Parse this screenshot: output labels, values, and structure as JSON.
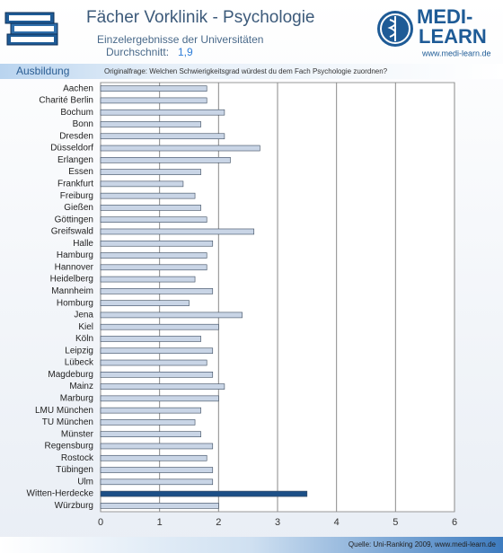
{
  "header": {
    "subtitle": "Einzelergebnisse der Universitäten",
    "average_label": "Durchschnitt:",
    "average": "1,9",
    "section": "Ausbildung",
    "question": "Originalfrage: Welchen Schwierigkeitsgrad würdest du dem Fach Psychologie zuordnen?",
    "logo_top": "MEDI-",
    "logo_bottom": "LEARN",
    "logo_url": "www.medi-learn.de"
  },
  "footer": {
    "source": "Quelle: Uni-Ranking 2009, www.medi-learn.de"
  },
  "chart_data": {
    "type": "hbar",
    "title": "Fächer Vorklinik - Psychologie",
    "categories": [
      "Aachen",
      "Charité Berlin",
      "Bochum",
      "Bonn",
      "Dresden",
      "Düsseldorf",
      "Erlangen",
      "Essen",
      "Frankfurt",
      "Freiburg",
      "Gießen",
      "Göttingen",
      "Greifswald",
      "Halle",
      "Hamburg",
      "Hannover",
      "Heidelberg",
      "Mannheim",
      "Homburg",
      "Jena",
      "Kiel",
      "Köln",
      "Leipzig",
      "Lübeck",
      "Magdeburg",
      "Mainz",
      "Marburg",
      "LMU München",
      "TU München",
      "Münster",
      "Regensburg",
      "Rostock",
      "Tübingen",
      "Ulm",
      "Witten-Herdecke",
      "Würzburg"
    ],
    "values": [
      1.8,
      1.8,
      2.1,
      1.7,
      2.1,
      2.7,
      2.2,
      1.7,
      1.4,
      1.6,
      1.7,
      1.8,
      2.6,
      1.9,
      1.8,
      1.8,
      1.6,
      1.9,
      1.5,
      2.4,
      2.0,
      1.7,
      1.9,
      1.8,
      1.9,
      2.1,
      2.0,
      1.7,
      1.6,
      1.7,
      1.9,
      1.8,
      1.9,
      1.9,
      3.5,
      2.0
    ],
    "colors": [
      "#c9d5e6",
      "#c9d5e6",
      "#c9d5e6",
      "#c9d5e6",
      "#c9d5e6",
      "#c9d5e6",
      "#c9d5e6",
      "#c9d5e6",
      "#c9d5e6",
      "#c9d5e6",
      "#c9d5e6",
      "#c9d5e6",
      "#c9d5e6",
      "#c9d5e6",
      "#c9d5e6",
      "#c9d5e6",
      "#c9d5e6",
      "#c9d5e6",
      "#c9d5e6",
      "#c9d5e6",
      "#c9d5e6",
      "#c9d5e6",
      "#c9d5e6",
      "#c9d5e6",
      "#c9d5e6",
      "#c9d5e6",
      "#c9d5e6",
      "#c9d5e6",
      "#c9d5e6",
      "#c9d5e6",
      "#c9d5e6",
      "#c9d5e6",
      "#c9d5e6",
      "#c9d5e6",
      "#1c4f86",
      "#c9d5e6"
    ],
    "xlim": [
      0,
      6
    ],
    "xticks": [
      0,
      1,
      2,
      3,
      4,
      5,
      6
    ],
    "grid": true
  }
}
